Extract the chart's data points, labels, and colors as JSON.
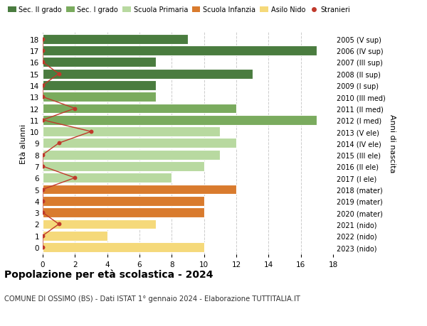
{
  "ages": [
    18,
    17,
    16,
    15,
    14,
    13,
    12,
    11,
    10,
    9,
    8,
    7,
    6,
    5,
    4,
    3,
    2,
    1,
    0
  ],
  "right_labels": [
    "2005 (V sup)",
    "2006 (IV sup)",
    "2007 (III sup)",
    "2008 (II sup)",
    "2009 (I sup)",
    "2010 (III med)",
    "2011 (II med)",
    "2012 (I med)",
    "2013 (V ele)",
    "2014 (IV ele)",
    "2015 (III ele)",
    "2016 (II ele)",
    "2017 (I ele)",
    "2018 (mater)",
    "2019 (mater)",
    "2020 (mater)",
    "2021 (nido)",
    "2022 (nido)",
    "2023 (nido)"
  ],
  "bar_values": [
    9,
    17,
    7,
    13,
    7,
    7,
    12,
    17,
    11,
    12,
    11,
    10,
    8,
    12,
    10,
    10,
    7,
    4,
    10
  ],
  "bar_colors": [
    "#4a7c3f",
    "#4a7c3f",
    "#4a7c3f",
    "#4a7c3f",
    "#4a7c3f",
    "#7aab5e",
    "#7aab5e",
    "#7aab5e",
    "#b8d9a0",
    "#b8d9a0",
    "#b8d9a0",
    "#b8d9a0",
    "#b8d9a0",
    "#d97b2e",
    "#d97b2e",
    "#d97b2e",
    "#f5d97a",
    "#f5d97a",
    "#f5d97a"
  ],
  "stranieri_values": [
    0,
    0,
    0,
    1,
    0,
    0,
    2,
    0,
    3,
    1,
    0,
    0,
    2,
    0,
    0,
    0,
    1,
    0,
    0
  ],
  "legend_labels": [
    "Sec. II grado",
    "Sec. I grado",
    "Scuola Primaria",
    "Scuola Infanzia",
    "Asilo Nido",
    "Stranieri"
  ],
  "legend_colors": [
    "#4a7c3f",
    "#7aab5e",
    "#b8d9a0",
    "#d97b2e",
    "#f5d97a",
    "#c0392b"
  ],
  "ylabel_left": "Età alunni",
  "ylabel_right": "Anni di nascita",
  "title": "Popolazione per età scolastica - 2024",
  "subtitle": "COMUNE DI OSSIMO (BS) - Dati ISTAT 1° gennaio 2024 - Elaborazione TUTTITALIA.IT",
  "xlim": [
    0,
    18
  ],
  "grid_color": "#cccccc",
  "background_color": "#ffffff",
  "bar_edge_color": "#ffffff"
}
